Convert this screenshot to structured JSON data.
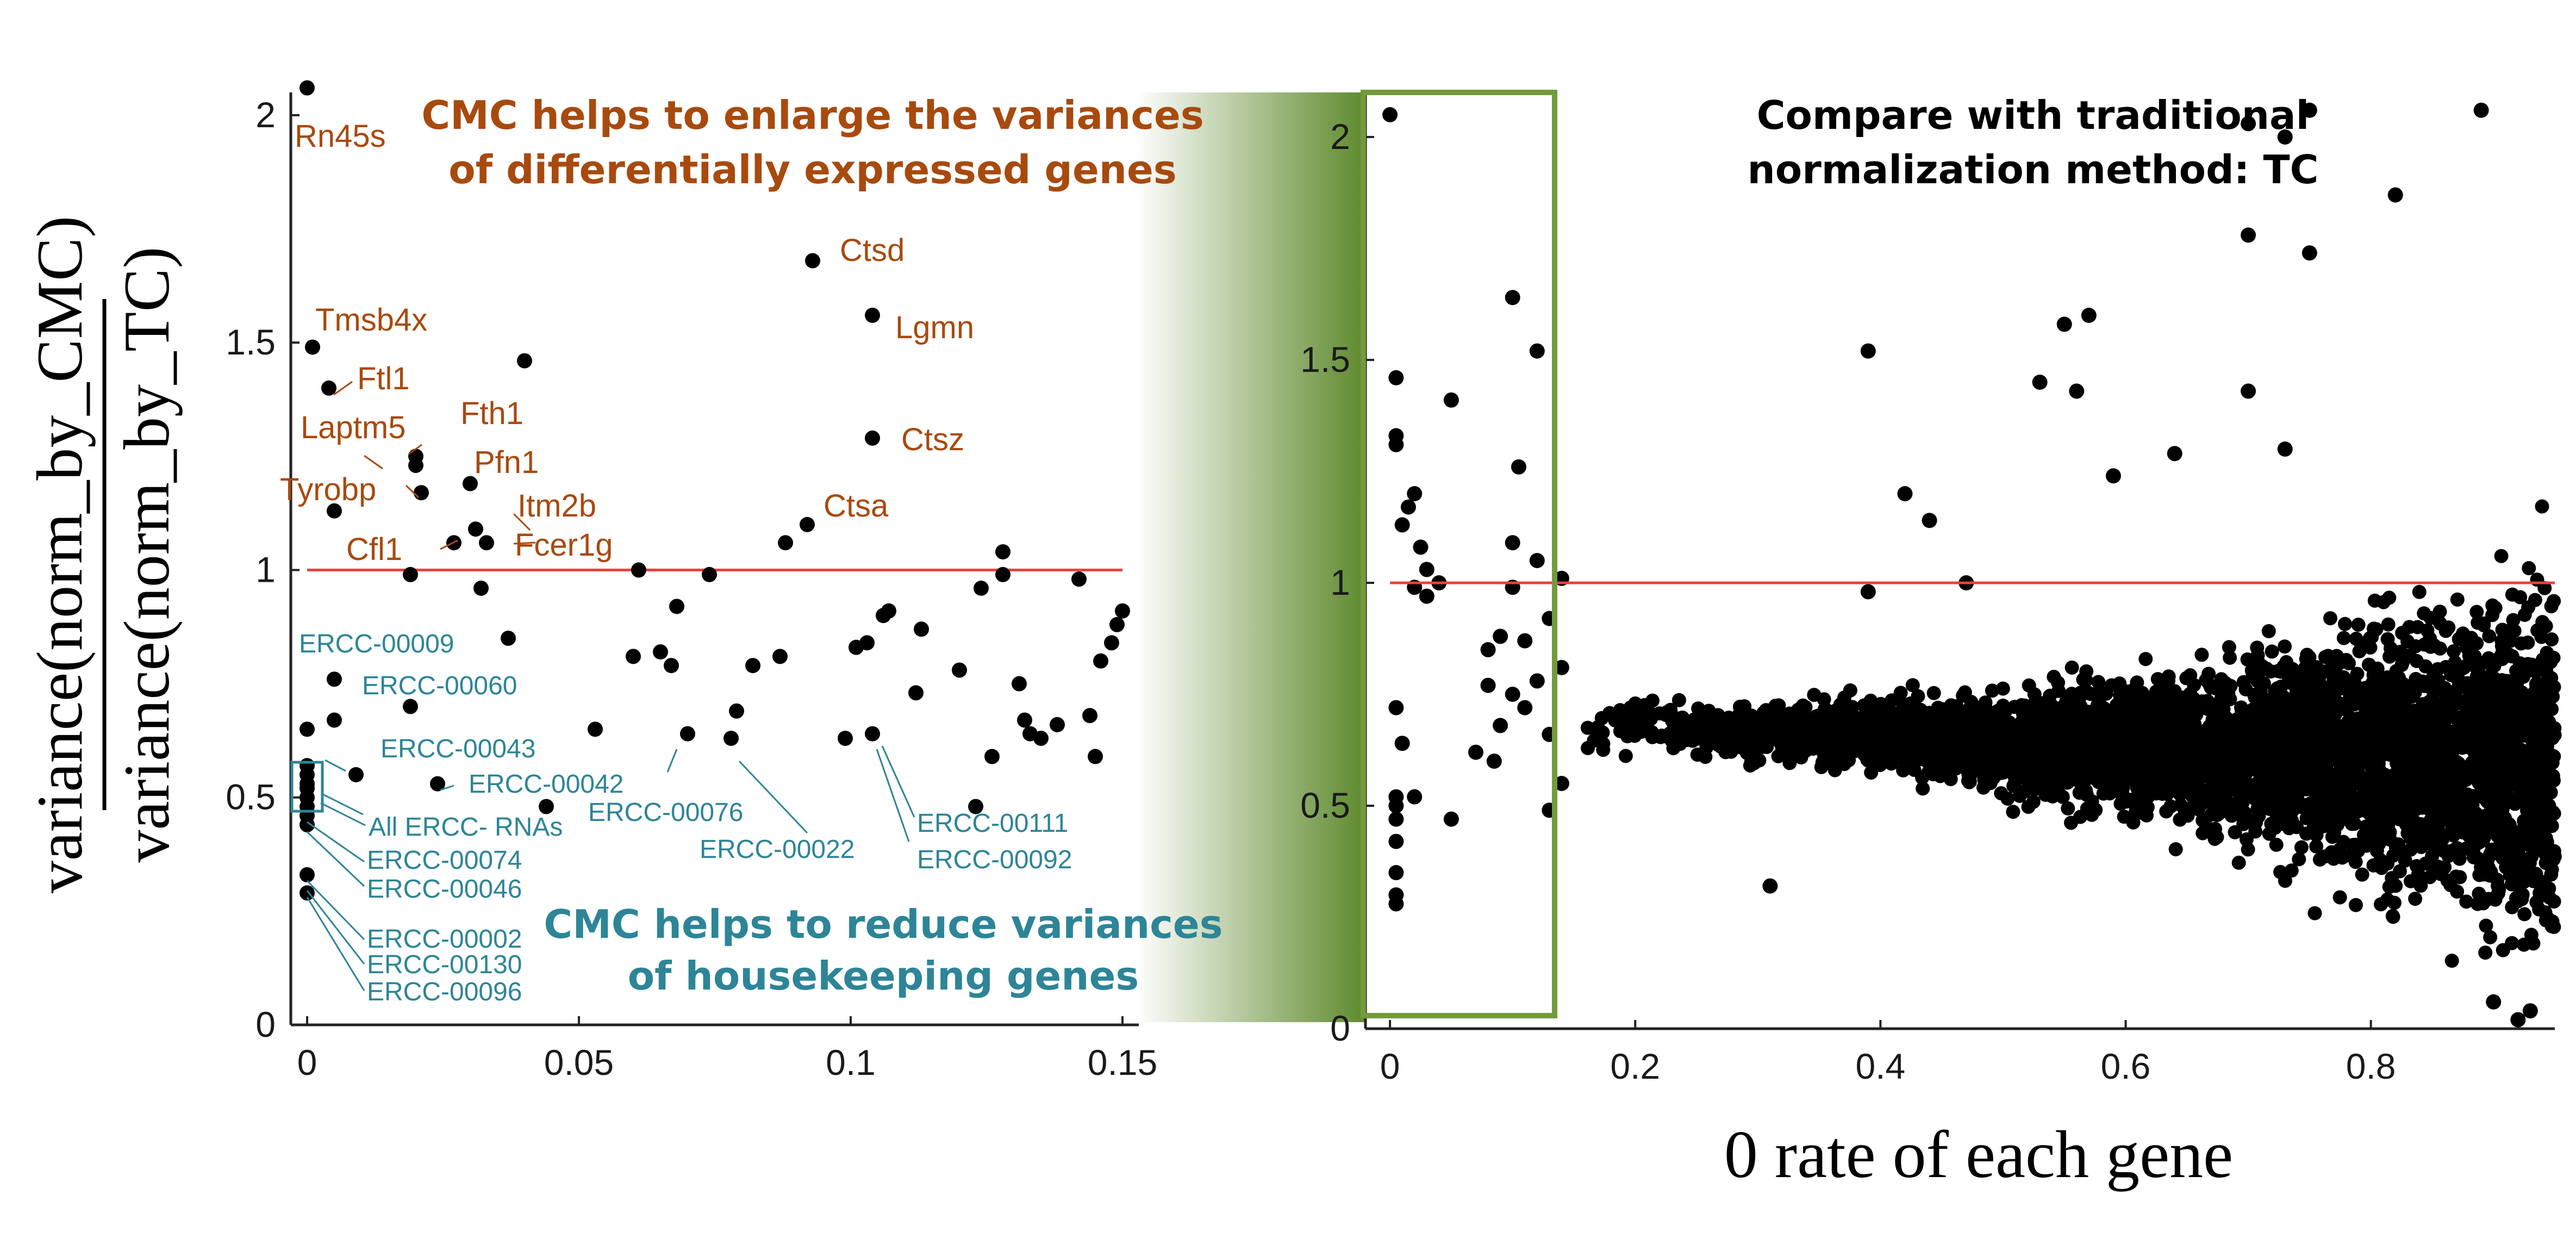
{
  "colors": {
    "point": "#000000",
    "reference_line": "#e8413c",
    "de_gene": "#a84a0e",
    "housekeeping": "#2d8597",
    "highlight_box": "#739a3c",
    "gradient_dark": "#5f8a2e",
    "axis": "#222222"
  },
  "y_axis_title": {
    "numerator": "variance(norm_by_CMC)",
    "denominator": "variance(norm_by_TC)"
  },
  "x_axis_title": "0 rate of each gene",
  "left_panel": {
    "heading_top": [
      "CMC helps to enlarge the variances",
      "of differentially expressed genes"
    ],
    "heading_bottom": [
      "CMC helps to reduce variances",
      "of housekeeping genes"
    ]
  },
  "right_panel": {
    "heading": [
      "Compare with traditional",
      "normalization method: TC"
    ]
  },
  "chart_data": [
    {
      "type": "scatter",
      "panel": "left (zoom of 0 rate 0 to 0.15)",
      "xlim": [
        -0.003,
        0.153
      ],
      "ylim": [
        0,
        2.05
      ],
      "xticks": [
        0,
        0.05,
        0.1,
        0.15
      ],
      "xtick_labels": [
        "0",
        "0.05",
        "0.1",
        "0.15"
      ],
      "yticks": [
        0,
        0.5,
        1,
        1.5,
        2
      ],
      "ytick_labels": [
        "0",
        "0.5",
        "1",
        "1.5",
        "2"
      ],
      "reference_line": {
        "y": 1,
        "x": [
          0,
          0.15
        ]
      },
      "grid": false,
      "points": [
        [
          0,
          2.06
        ],
        [
          0.001,
          1.49
        ],
        [
          0.004,
          1.4
        ],
        [
          0.005,
          1.13
        ],
        [
          0.02,
          1.23
        ],
        [
          0.02,
          1.25
        ],
        [
          0.021,
          1.17
        ],
        [
          0.03,
          1.19
        ],
        [
          0.04,
          1.46
        ],
        [
          0.019,
          0.99
        ],
        [
          0.027,
          1.06
        ],
        [
          0.031,
          1.09
        ],
        [
          0.033,
          1.06
        ],
        [
          0.032,
          0.96
        ],
        [
          0.037,
          0.85
        ],
        [
          0.061,
          1.0
        ],
        [
          0.074,
          0.99
        ],
        [
          0.088,
          1.06
        ],
        [
          0.092,
          1.1
        ],
        [
          0.093,
          1.68
        ],
        [
          0.104,
          1.56
        ],
        [
          0.104,
          1.29
        ],
        [
          0.06,
          0.81
        ],
        [
          0.065,
          0.82
        ],
        [
          0.067,
          0.79
        ],
        [
          0.068,
          0.92
        ],
        [
          0.082,
          0.79
        ],
        [
          0.087,
          0.81
        ],
        [
          0.101,
          0.83
        ],
        [
          0.103,
          0.84
        ],
        [
          0.106,
          0.9
        ],
        [
          0.107,
          0.91
        ],
        [
          0.112,
          0.73
        ],
        [
          0.113,
          0.87
        ],
        [
          0.12,
          0.78
        ],
        [
          0.124,
          0.96
        ],
        [
          0.128,
          0.99
        ],
        [
          0.128,
          1.04
        ],
        [
          0.131,
          0.75
        ],
        [
          0.132,
          0.67
        ],
        [
          0.133,
          0.64
        ],
        [
          0.135,
          0.63
        ],
        [
          0.138,
          0.66
        ],
        [
          0.142,
          0.98
        ],
        [
          0.144,
          0.68
        ],
        [
          0.145,
          0.59
        ],
        [
          0.146,
          0.8
        ],
        [
          0.148,
          0.84
        ],
        [
          0.149,
          0.88
        ],
        [
          0.15,
          0.91
        ],
        [
          0.126,
          0.59
        ],
        [
          0.123,
          0.48
        ],
        [
          0.099,
          0.63
        ],
        [
          0.104,
          0.64
        ],
        [
          0.078,
          0.63
        ],
        [
          0.07,
          0.64
        ],
        [
          0.053,
          0.65
        ],
        [
          0.079,
          0.69
        ],
        [
          0.044,
          0.48
        ],
        [
          0.024,
          0.53
        ],
        [
          0.019,
          0.7
        ],
        [
          0.005,
          0.76
        ],
        [
          0.005,
          0.67
        ],
        [
          0.009,
          0.55
        ],
        [
          0,
          0.65
        ],
        [
          0,
          0.57
        ],
        [
          0,
          0.55
        ],
        [
          0,
          0.53
        ],
        [
          0,
          0.52
        ],
        [
          0,
          0.5
        ],
        [
          0,
          0.48
        ],
        [
          0,
          0.46
        ],
        [
          0,
          0.44
        ],
        [
          0,
          0.33
        ],
        [
          0,
          0.29
        ]
      ],
      "de_gene_labels": [
        "Rn45s",
        "Tmsb4x",
        "Ftl1",
        "Laptm5",
        "Fth1",
        "Pfn1",
        "Tyrobp",
        "Itm2b",
        "Cfl1",
        "Fcer1g",
        "Ctsd",
        "Lgmn",
        "Ctsz",
        "Ctsa"
      ],
      "housekeeping_labels": [
        "ERCC-00009",
        "ERCC-00060",
        "ERCC-00043",
        "ERCC-00042",
        "All ERCC- RNAs",
        "ERCC-00076",
        "ERCC-00022",
        "ERCC-00111",
        "ERCC-00092",
        "ERCC-00074",
        "ERCC-00046",
        "ERCC-00002",
        "ERCC-00130",
        "ERCC-00096"
      ]
    },
    {
      "type": "scatter",
      "panel": "right (full range)",
      "xlim": [
        -0.02,
        0.95
      ],
      "ylim": [
        0,
        2.1
      ],
      "xticks": [
        0,
        0.2,
        0.4,
        0.6,
        0.8
      ],
      "xtick_labels": [
        "0",
        "0.2",
        "0.4",
        "0.6",
        "0.8"
      ],
      "yticks": [
        0,
        0.5,
        1,
        1.5,
        2
      ],
      "ytick_labels": [
        "0",
        "0.5",
        "1",
        "1.5",
        "2"
      ],
      "reference_line": {
        "y": 1,
        "x": [
          0,
          0.95
        ]
      },
      "highlight_box": {
        "x": [
          -0.02,
          0.15
        ],
        "y": [
          0,
          2.1
        ]
      },
      "grid": false,
      "points": [
        [
          0,
          2.05
        ],
        [
          0.005,
          1.46
        ],
        [
          0.005,
          1.33
        ],
        [
          0.005,
          1.31
        ],
        [
          0.02,
          1.2
        ],
        [
          0.03,
          1.03
        ],
        [
          0.05,
          1.41
        ],
        [
          0.01,
          1.13
        ],
        [
          0.015,
          1.17
        ],
        [
          0.025,
          1.08
        ],
        [
          0.04,
          1.0
        ],
        [
          0.1,
          1.64
        ],
        [
          0.12,
          1.52
        ],
        [
          0.105,
          1.26
        ],
        [
          0.1,
          1.09
        ],
        [
          0.12,
          1.05
        ],
        [
          0.14,
          1.01
        ],
        [
          0.1,
          0.99
        ],
        [
          0.13,
          0.92
        ],
        [
          0.09,
          0.88
        ],
        [
          0.08,
          0.85
        ],
        [
          0.11,
          0.87
        ],
        [
          0.02,
          0.99
        ],
        [
          0.03,
          0.97
        ],
        [
          0.14,
          0.81
        ],
        [
          0.12,
          0.78
        ],
        [
          0.08,
          0.77
        ],
        [
          0.1,
          0.75
        ],
        [
          0.11,
          0.72
        ],
        [
          0.09,
          0.68
        ],
        [
          0.13,
          0.66
        ],
        [
          0.005,
          0.72
        ],
        [
          0.01,
          0.64
        ],
        [
          0.005,
          0.52
        ],
        [
          0.005,
          0.5
        ],
        [
          0.005,
          0.47
        ],
        [
          0.005,
          0.42
        ],
        [
          0.005,
          0.35
        ],
        [
          0.005,
          0.3
        ],
        [
          0.005,
          0.28
        ],
        [
          0.02,
          0.52
        ],
        [
          0.05,
          0.47
        ],
        [
          0.13,
          0.49
        ],
        [
          0.14,
          0.55
        ],
        [
          0.07,
          0.62
        ],
        [
          0.085,
          0.6
        ],
        [
          0.39,
          1.52
        ],
        [
          0.31,
          0.32
        ],
        [
          0.7,
          2.03
        ],
        [
          0.75,
          2.06
        ],
        [
          0.89,
          2.06
        ],
        [
          0.73,
          2.0
        ],
        [
          0.7,
          1.78
        ],
        [
          0.75,
          1.74
        ],
        [
          0.7,
          1.43
        ],
        [
          0.73,
          1.3
        ],
        [
          0.82,
          1.87
        ],
        [
          0.55,
          1.58
        ],
        [
          0.57,
          1.6
        ],
        [
          0.53,
          1.45
        ],
        [
          0.56,
          1.43
        ],
        [
          0.44,
          1.14
        ],
        [
          0.47,
          1.0
        ],
        [
          0.42,
          1.2
        ],
        [
          0.39,
          0.98
        ],
        [
          0.59,
          1.24
        ],
        [
          0.64,
          1.29
        ],
        [
          0.9,
          0.06
        ],
        [
          0.93,
          0.04
        ],
        [
          0.92,
          0.02
        ]
      ],
      "note_cloud": "several thousand genes forming a cone from about 0.15 to 0.95, centred near 0.6 and widening toward high 0 rate"
    }
  ]
}
